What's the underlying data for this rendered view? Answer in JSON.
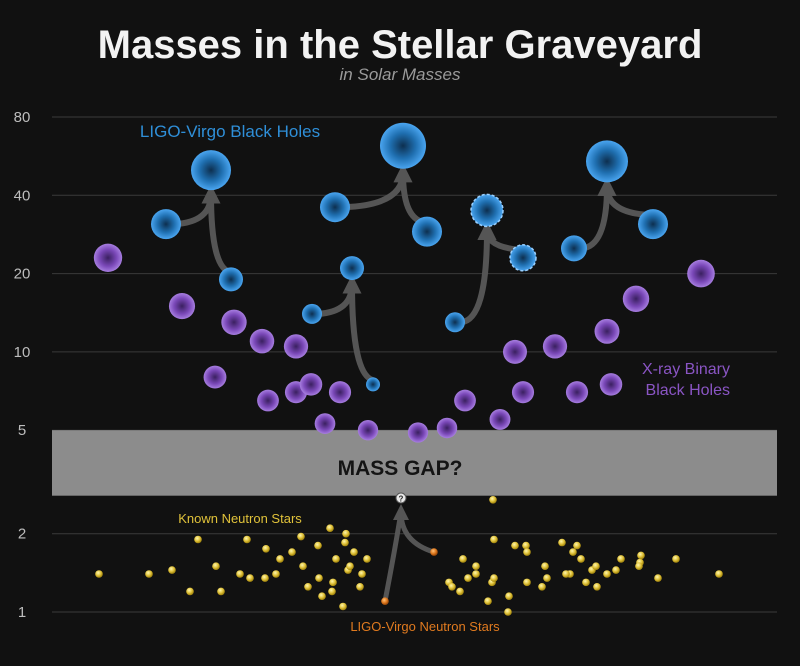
{
  "chart_data": {
    "type": "scatter",
    "title": "Masses in the Stellar Graveyard",
    "subtitle": "in Solar Masses",
    "y_scale": "log",
    "ylim": [
      0.9,
      90
    ],
    "y_ticks": [
      1,
      2,
      5,
      10,
      20,
      40,
      80
    ],
    "y_tick_labels": [
      "1",
      "2",
      "5",
      "10",
      "20",
      "40",
      "80"
    ],
    "grid": true,
    "mass_gap": {
      "label": "MASS GAP?",
      "range": [
        2.8,
        5.0
      ]
    },
    "annotations": {
      "ligo_bh": "LIGO-Virgo Black Holes",
      "xray_bh_line1": "X-ray Binary",
      "xray_bh_line2": "Black Holes",
      "known_ns": "Known Neutron Stars",
      "ligo_ns": "LIGO-Virgo Neutron Stars",
      "unknown_remnant": "?"
    },
    "colors": {
      "background": "#111111",
      "ligo_bh": "#2f8fd8",
      "xray_bh": "#8a55c4",
      "known_ns": "#e0c23a",
      "ligo_ns": "#e07a1f",
      "gap": "#8c8c8c",
      "arrow": "#555555"
    },
    "series": [
      {
        "name": "LIGO-Virgo Black Holes",
        "points": [
          {
            "x": 1,
            "y": 31
          },
          {
            "x": 2,
            "y": 19
          },
          {
            "x": 3,
            "y": 50
          },
          {
            "x": 4,
            "y": 14
          },
          {
            "x": 5,
            "y": 7.5
          },
          {
            "x": 6,
            "y": 36
          },
          {
            "x": 7,
            "y": 21
          },
          {
            "x": 8,
            "y": 62
          },
          {
            "x": 9,
            "y": 29
          },
          {
            "x": 10,
            "y": 13
          },
          {
            "x": 11,
            "y": 35
          },
          {
            "x": 12,
            "y": 23
          },
          {
            "x": 13,
            "y": 25
          },
          {
            "x": 14,
            "y": 54
          },
          {
            "x": 15,
            "y": 31
          }
        ]
      },
      {
        "name": "X-ray Binary Black Holes",
        "values": [
          23,
          15,
          8.0,
          13,
          11,
          7,
          6.5,
          10.5,
          7.5,
          7,
          5.3,
          5.0,
          4.9,
          5.1,
          6.5,
          5.5,
          10,
          7,
          10.5,
          7,
          12,
          7.5,
          16,
          20
        ]
      },
      {
        "name": "Known Neutron Stars",
        "values": [
          1.4,
          1.4,
          1.45,
          1.2,
          1.9,
          1.5,
          1.2,
          1.4,
          1.9,
          1.35,
          1.75,
          1.35,
          1.6,
          1.4,
          1.7,
          1.95,
          1.5,
          1.25,
          1.8,
          1.35,
          1.15,
          1.3,
          1.6,
          1.2,
          1.45,
          1.05,
          2.1,
          1.7,
          1.25,
          2.0,
          1.4,
          1.85,
          1.5,
          1.6,
          1.3,
          1.25,
          1.2,
          1.35,
          1.1,
          1.3,
          1.4,
          1.8,
          1.5,
          1.35,
          2.7,
          1.9,
          1.6,
          1.15,
          1.3,
          1.8,
          1.0,
          1.7,
          1.25,
          1.5,
          1.35,
          1.85,
          1.4,
          1.3,
          1.45,
          1.8,
          1.5,
          1.7,
          1.4,
          1.6,
          1.4,
          1.25,
          1.6,
          1.45,
          1.55,
          1.5,
          1.65,
          1.35,
          1.6,
          1.4
        ]
      },
      {
        "name": "LIGO-Virgo Neutron Stars",
        "values": [
          1.1,
          1.7
        ]
      }
    ]
  }
}
